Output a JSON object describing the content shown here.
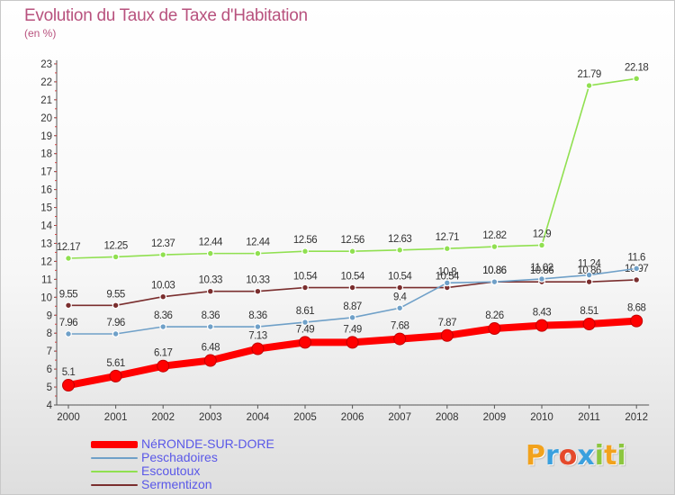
{
  "title": "Evolution du Taux de Taxe d'Habitation",
  "unit": "(en %)",
  "logo": {
    "text": "Proxiti",
    "letters": [
      {
        "ch": "P",
        "color": "#f2a21c"
      },
      {
        "ch": "r",
        "color": "#3aa0de"
      },
      {
        "ch": "o",
        "color": "#e54a2c"
      },
      {
        "ch": "x",
        "color": "#3aa0de"
      },
      {
        "ch": "i",
        "color": "#8cc63f"
      },
      {
        "ch": "t",
        "color": "#f2a21c"
      },
      {
        "ch": "i",
        "color": "#8cc63f"
      }
    ]
  },
  "chart_data": {
    "type": "line",
    "title": "Evolution du Taux de Taxe d'Habitation",
    "ylabel": "(en %)",
    "xlabel": "",
    "x": [
      "2000",
      "2001",
      "2002",
      "2003",
      "2004",
      "2005",
      "2006",
      "2007",
      "2008",
      "2009",
      "2010",
      "2011",
      "2012"
    ],
    "ylim": [
      4,
      23
    ],
    "yticks": [
      "4",
      "5",
      "6",
      "7",
      "8",
      "9",
      "10",
      "11",
      "12",
      "13",
      "14",
      "15",
      "16",
      "17",
      "18",
      "19",
      "20",
      "21",
      "22",
      "23"
    ],
    "grid": false,
    "legend_position": "bottom-left",
    "series": [
      {
        "name": "NéRONDE-SUR-DORE",
        "color": "#ff0000",
        "values": [
          5.1,
          5.61,
          6.17,
          6.48,
          7.13,
          7.49,
          7.49,
          7.68,
          7.87,
          8.26,
          8.43,
          8.51,
          8.68
        ],
        "labels": [
          "5.1",
          "5.61",
          "6.17",
          "6.48",
          "7.13",
          "7.49",
          "7.49",
          "7.68",
          "7.87",
          "8.26",
          "8.43",
          "8.51",
          "8.68"
        ]
      },
      {
        "name": "Peschadoires",
        "color": "#6fa0c8",
        "values": [
          7.96,
          7.96,
          8.36,
          8.36,
          8.36,
          8.61,
          8.87,
          9.4,
          10.8,
          10.86,
          11.02,
          11.24,
          11.6
        ],
        "labels": [
          "7.96",
          "7.96",
          "8.36",
          "8.36",
          "8.36",
          "8.61",
          "8.87",
          "9.4",
          "10.8",
          "10.86",
          "11.02",
          "11.24",
          "11.6"
        ]
      },
      {
        "name": "Escoutoux",
        "color": "#90e050",
        "values": [
          12.17,
          12.25,
          12.37,
          12.44,
          12.44,
          12.56,
          12.56,
          12.63,
          12.71,
          12.82,
          12.9,
          21.79,
          22.18
        ],
        "labels": [
          "12.17",
          "12.25",
          "12.37",
          "12.44",
          "12.44",
          "12.56",
          "12.56",
          "12.63",
          "12.71",
          "12.82",
          "12.9",
          "21.79",
          "22.18"
        ]
      },
      {
        "name": "Sermentizon",
        "color": "#7a2e2e",
        "values": [
          9.55,
          9.55,
          10.03,
          10.33,
          10.33,
          10.54,
          10.54,
          10.54,
          10.54,
          10.86,
          10.86,
          10.86,
          10.97
        ],
        "labels": [
          "9.55",
          "9.55",
          "10.03",
          "10.33",
          "10.33",
          "10.54",
          "10.54",
          "10.54",
          "10.54",
          "10.86",
          "10.86",
          "10.86",
          "10.97"
        ]
      }
    ]
  }
}
